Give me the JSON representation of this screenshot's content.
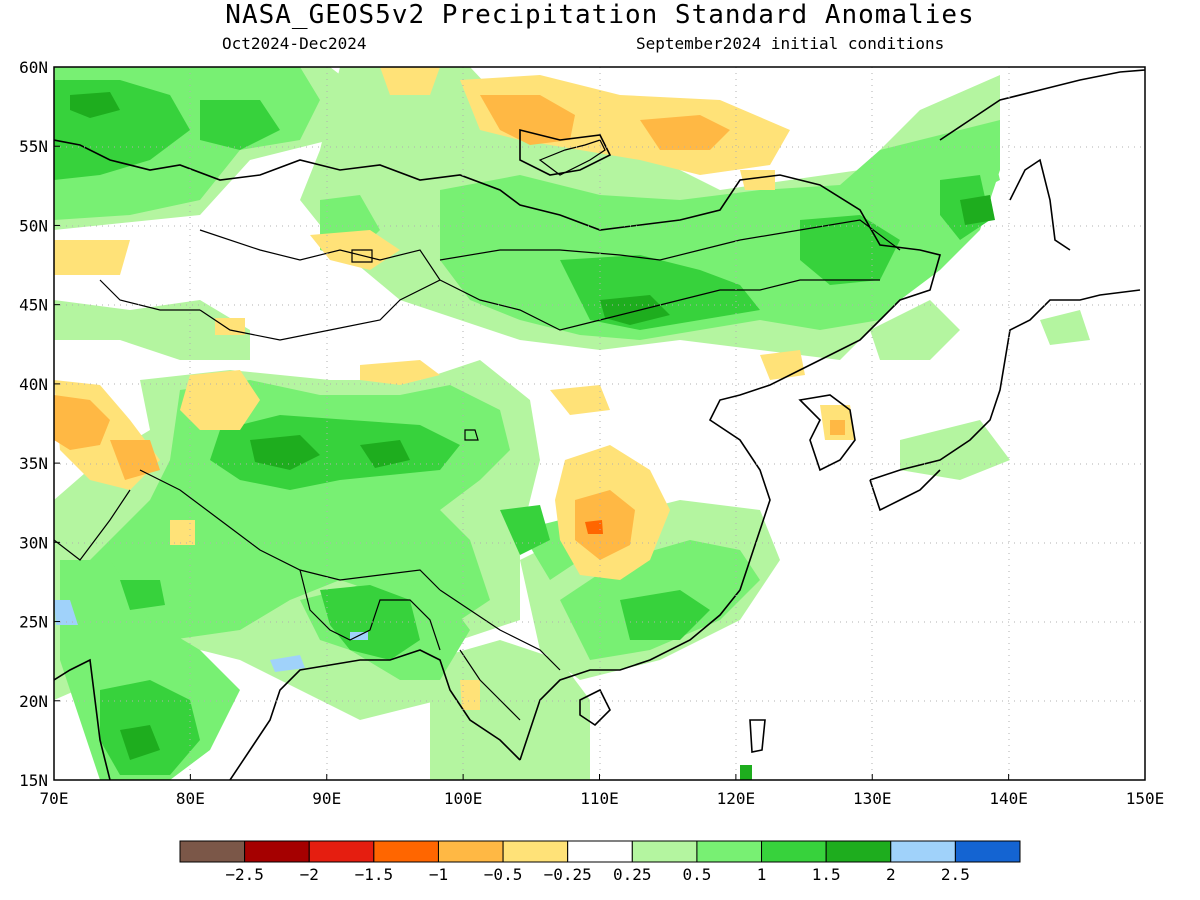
{
  "header": {
    "title": "NASA_GEOS5v2 Precipitation Standard Anomalies",
    "period": "Oct2024-Dec2024",
    "init_conditions": "September2024 initial conditions"
  },
  "axes": {
    "lon_ticks": [
      "70E",
      "80E",
      "90E",
      "100E",
      "110E",
      "120E",
      "130E",
      "140E",
      "150E"
    ],
    "lat_ticks": [
      "15N",
      "20N",
      "25N",
      "30N",
      "35N",
      "40N",
      "45N",
      "50N",
      "55N",
      "60N"
    ],
    "lon_range": [
      70,
      150
    ],
    "lat_range": [
      15,
      60
    ]
  },
  "colorbar": {
    "colors": [
      "#7b5748",
      "#a50000",
      "#e51e10",
      "#ff6600",
      "#ffb844",
      "#ffe278",
      "#ffffff",
      "#b4f5a0",
      "#78f073",
      "#37d23c",
      "#1ead1e",
      "#a0d2fa",
      "#1464d2"
    ],
    "labels": [
      "−2.5",
      "−2",
      "−1.5",
      "−1",
      "−0.5",
      "−0.25",
      "0.25",
      "0.5",
      "1",
      "1.5",
      "2",
      "2.5"
    ]
  }
}
